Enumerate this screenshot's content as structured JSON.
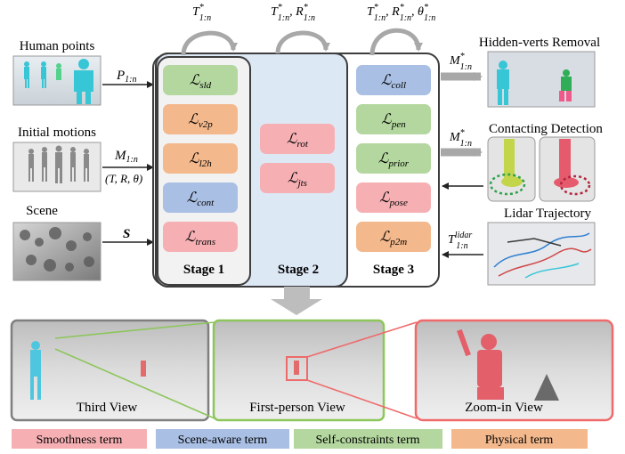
{
  "inputs": {
    "human_points": {
      "label": "Human points",
      "arrow_label": "P",
      "arrow_sub": "1:n"
    },
    "initial_motions": {
      "label": "Initial motions",
      "arrow_label": "M",
      "arrow_sub": "1:n",
      "params": "(T, R, θ)"
    },
    "scene": {
      "label": "Scene",
      "arrow_label": "S"
    }
  },
  "loops": [
    {
      "label": "T",
      "sup": "*",
      "sub": "1:n"
    },
    {
      "label": "T",
      "sup": "*",
      "sub": "1:n",
      "label2": "R",
      "sup2": "*",
      "sub2": "1:n"
    },
    {
      "label": "T",
      "sup": "*",
      "sub": "1:n",
      "label2": "R",
      "sup2": "*",
      "sub2": "1:n",
      "label3": "θ",
      "sup3": "*",
      "sub3": "1:n"
    }
  ],
  "stages": [
    {
      "title": "Stage 1",
      "losses": [
        {
          "name": "sld",
          "category": "self"
        },
        {
          "name": "v2p",
          "category": "physical"
        },
        {
          "name": "l2h",
          "category": "physical"
        },
        {
          "name": "cont",
          "category": "scene"
        },
        {
          "name": "trans",
          "category": "smooth"
        }
      ]
    },
    {
      "title": "Stage 2",
      "losses": [
        {
          "name": "rot",
          "category": "smooth"
        },
        {
          "name": "jts",
          "category": "smooth"
        }
      ]
    },
    {
      "title": "Stage 3",
      "losses": [
        {
          "name": "coll",
          "category": "scene"
        },
        {
          "name": "pen",
          "category": "self"
        },
        {
          "name": "prior",
          "category": "self"
        },
        {
          "name": "pose",
          "category": "smooth"
        },
        {
          "name": "p2m",
          "category": "physical"
        }
      ]
    }
  ],
  "outputs": {
    "hidden_verts": {
      "label": "Hidden-verts Removal",
      "arrow_label": "M",
      "arrow_sup": "*",
      "arrow_sub": "1:n"
    },
    "contact": {
      "label": "Contacting Detection",
      "arrow_label": "M",
      "arrow_sup": "*",
      "arrow_sub": "1:n"
    },
    "lidar": {
      "label": "Lidar Trajectory",
      "arrow_label": "T",
      "arrow_sup": "lidar",
      "arrow_sub": "1:n"
    }
  },
  "views": [
    {
      "label": "Third View",
      "frame_color": "#7f7f7f"
    },
    {
      "label": "First-person View",
      "frame_color": "#8dc65b"
    },
    {
      "label": "Zoom-in View",
      "frame_color": "#ef6a6a"
    }
  ],
  "legend": [
    {
      "label": "Smoothness term",
      "color": "#f6b0b4"
    },
    {
      "label": "Scene-aware term",
      "color": "#a9bfe3"
    },
    {
      "label": "Self-constraints term",
      "color": "#b3d79e"
    },
    {
      "label": "Physical term",
      "color": "#f3b88c"
    }
  ],
  "colors": {
    "smooth": "#f6b0b4",
    "scene": "#a9bfe3",
    "self": "#b3d79e",
    "physical": "#f3b88c",
    "stage1_bg": "#f2f2f2",
    "stage2_bg": "#dde8f5",
    "points": "#37c6d6"
  }
}
